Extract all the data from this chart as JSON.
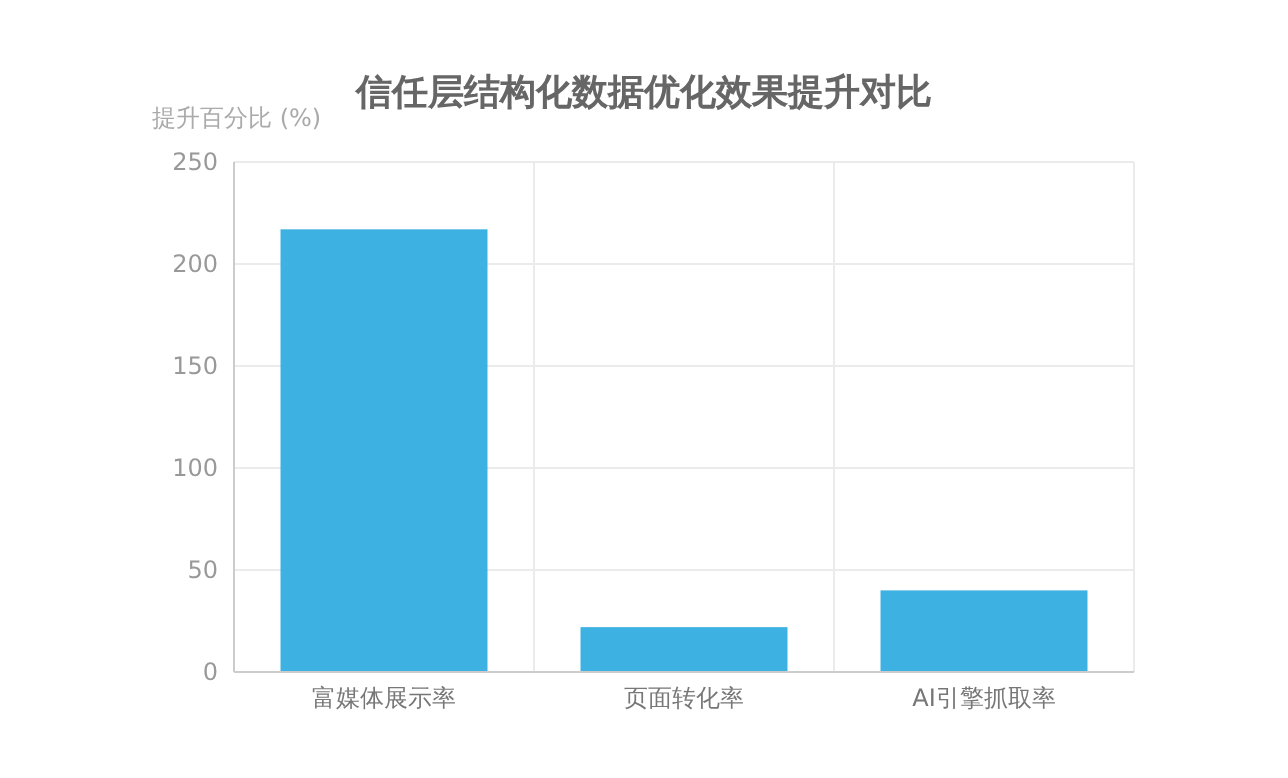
{
  "chart_data": {
    "type": "bar",
    "title": "信任层结构化数据优化效果提升对比",
    "ylabel": "提升百分比 (%)",
    "categories": [
      "富媒体展示率",
      "页面转化率",
      "AI引擎抓取率"
    ],
    "values": [
      217,
      22,
      40
    ],
    "color": "#3eb1e3",
    "ylim": [
      0,
      250
    ],
    "yticks": [
      0,
      50,
      100,
      150,
      200,
      250
    ],
    "grid": true
  }
}
